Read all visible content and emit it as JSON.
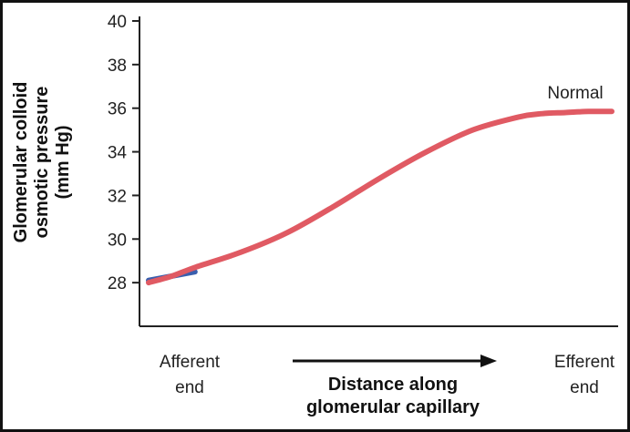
{
  "chart_data": {
    "type": "line",
    "title": "",
    "ylabel_lines": [
      "Glomerular colloid",
      "osmotic pressure",
      "(mm Hg)"
    ],
    "xlabel_lines": [
      "Distance along",
      "glomerular capillary"
    ],
    "x_start_label_lines": [
      "Afferent",
      "end"
    ],
    "x_end_label_lines": [
      "Efferent",
      "end"
    ],
    "x_range": [
      0,
      1
    ],
    "ylim": [
      26,
      40
    ],
    "yticks": [
      28,
      30,
      32,
      34,
      36,
      38,
      40
    ],
    "grid": false,
    "series": [
      {
        "name": "Normal",
        "color": "#e05a63",
        "x": [
          0.0,
          0.05,
          0.1,
          0.2,
          0.3,
          0.4,
          0.5,
          0.6,
          0.7,
          0.8,
          0.85,
          0.9,
          0.95,
          1.0
        ],
        "y": [
          28.0,
          28.3,
          28.7,
          29.4,
          30.3,
          31.5,
          32.8,
          34.0,
          35.0,
          35.6,
          35.75,
          35.8,
          35.85,
          35.85
        ]
      }
    ],
    "overlay_segment": {
      "color": "#3a5fae",
      "x": [
        0.0,
        0.1
      ],
      "y": [
        28.1,
        28.5
      ]
    }
  }
}
